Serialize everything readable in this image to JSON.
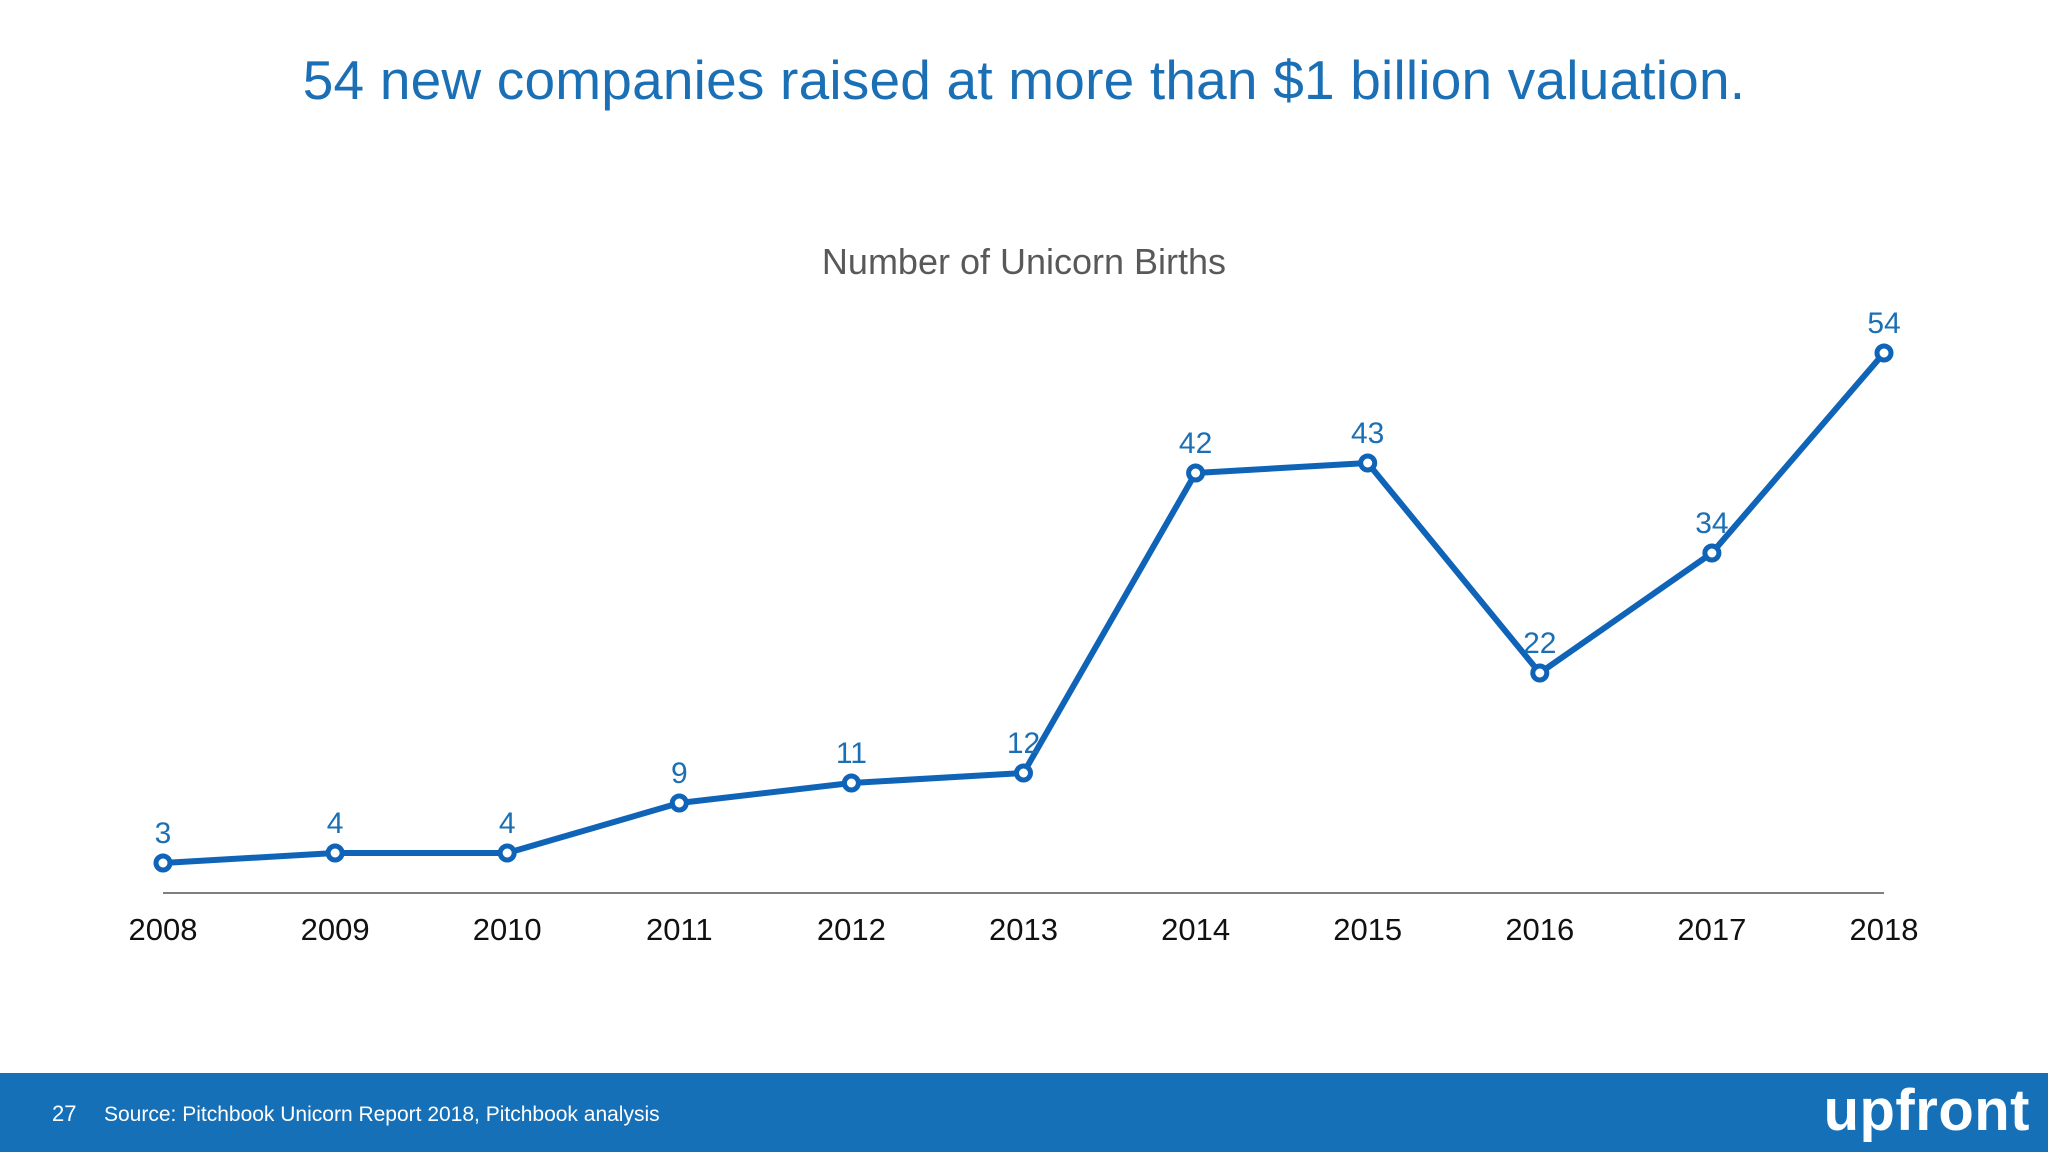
{
  "headline": "54 new companies raised at more than $1 billion valuation.",
  "footer": {
    "page_number": "27",
    "source": "Source: Pitchbook Unicorn Report 2018, Pitchbook analysis",
    "logo": "upfront"
  },
  "colors": {
    "headline": "#1a6fb5",
    "line": "#0f64b8",
    "data_label": "#1a6fb5",
    "footer_bg": "#1670b8"
  },
  "chart_data": {
    "type": "line",
    "title": "Number of Unicorn Births",
    "xlabel": "",
    "ylabel": "",
    "categories": [
      "2008",
      "2009",
      "2010",
      "2011",
      "2012",
      "2013",
      "2014",
      "2015",
      "2016",
      "2017",
      "2018"
    ],
    "series": [
      {
        "values": [
          3,
          4,
          4,
          9,
          11,
          12,
          42,
          43,
          22,
          34,
          54
        ]
      }
    ],
    "ylim": [
      0,
      60
    ],
    "grid": false,
    "legend": "none",
    "data_labels": true
  }
}
